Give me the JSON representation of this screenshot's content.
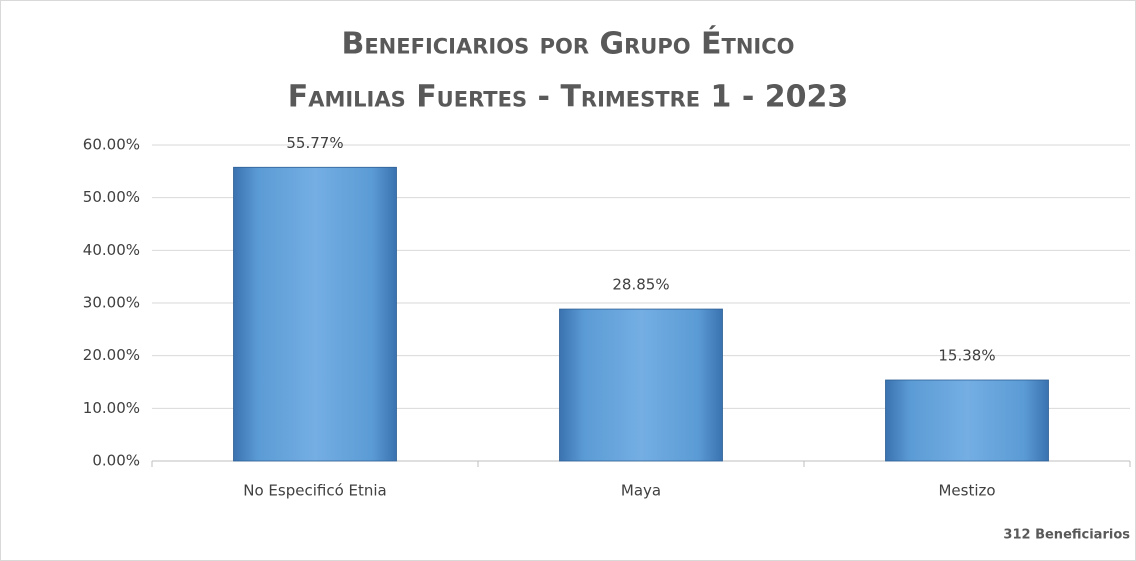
{
  "chart_data": {
    "type": "bar",
    "title": [
      "Beneficiarios por Grupo Étnico",
      "Familias Fuertes - Trimestre 1 - 2023"
    ],
    "categories": [
      "No Especificó Etnia",
      "Maya",
      "Mestizo"
    ],
    "values": [
      55.77,
      28.85,
      15.38
    ],
    "value_labels": [
      "55.77%",
      "28.85%",
      "15.38%"
    ],
    "color": "#5b9bd5",
    "ylim": [
      0,
      60
    ],
    "yticks": [
      {
        "value": 0,
        "label": "0.00%"
      },
      {
        "value": 10,
        "label": "10.00%"
      },
      {
        "value": 20,
        "label": "20.00%"
      },
      {
        "value": 30,
        "label": "30.00%"
      },
      {
        "value": 40,
        "label": "40.00%"
      },
      {
        "value": 50,
        "label": "50.00%"
      },
      {
        "value": 60,
        "label": "60.00%"
      }
    ],
    "grid": true,
    "annotation": "312 Beneficiarios"
  }
}
